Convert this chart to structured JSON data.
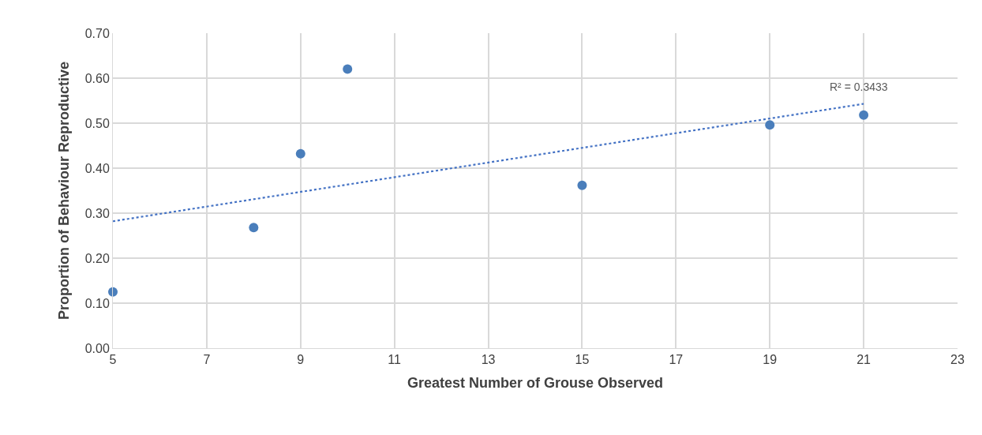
{
  "chart_data": {
    "type": "scatter",
    "xlabel": "Greatest Number of Grouse Observed",
    "ylabel": "Proportion of Behaviour Reproductive",
    "xlim": [
      5,
      23
    ],
    "xticks": [
      5,
      7,
      9,
      11,
      13,
      15,
      17,
      19,
      21,
      23
    ],
    "ylim": [
      0,
      0.7
    ],
    "yticks": [
      {
        "value": 0,
        "label": "0.00"
      },
      {
        "value": 0.1,
        "label": "0.10"
      },
      {
        "value": 0.2,
        "label": "0.20"
      },
      {
        "value": 0.3,
        "label": "0.30"
      },
      {
        "value": 0.4,
        "label": "0.40"
      },
      {
        "value": 0.5,
        "label": "0.50"
      },
      {
        "value": 0.6,
        "label": "0.60"
      },
      {
        "value": 0.7,
        "label": "0.70"
      }
    ],
    "grid": true,
    "marker": "circle",
    "series": [
      {
        "color": "#4a7ebb",
        "x": [
          5,
          8,
          9,
          10,
          15,
          19,
          21
        ],
        "values": [
          0.125,
          0.268,
          0.432,
          0.62,
          0.362,
          0.496,
          0.518
        ]
      },
      {
        "type": "line",
        "color": "#4472c4",
        "x": [
          5,
          21
        ],
        "values": [
          0.282,
          0.543
        ],
        "line_style": "dotted",
        "marker": "none"
      }
    ],
    "annotations": [
      "R² = 0.3433"
    ]
  }
}
